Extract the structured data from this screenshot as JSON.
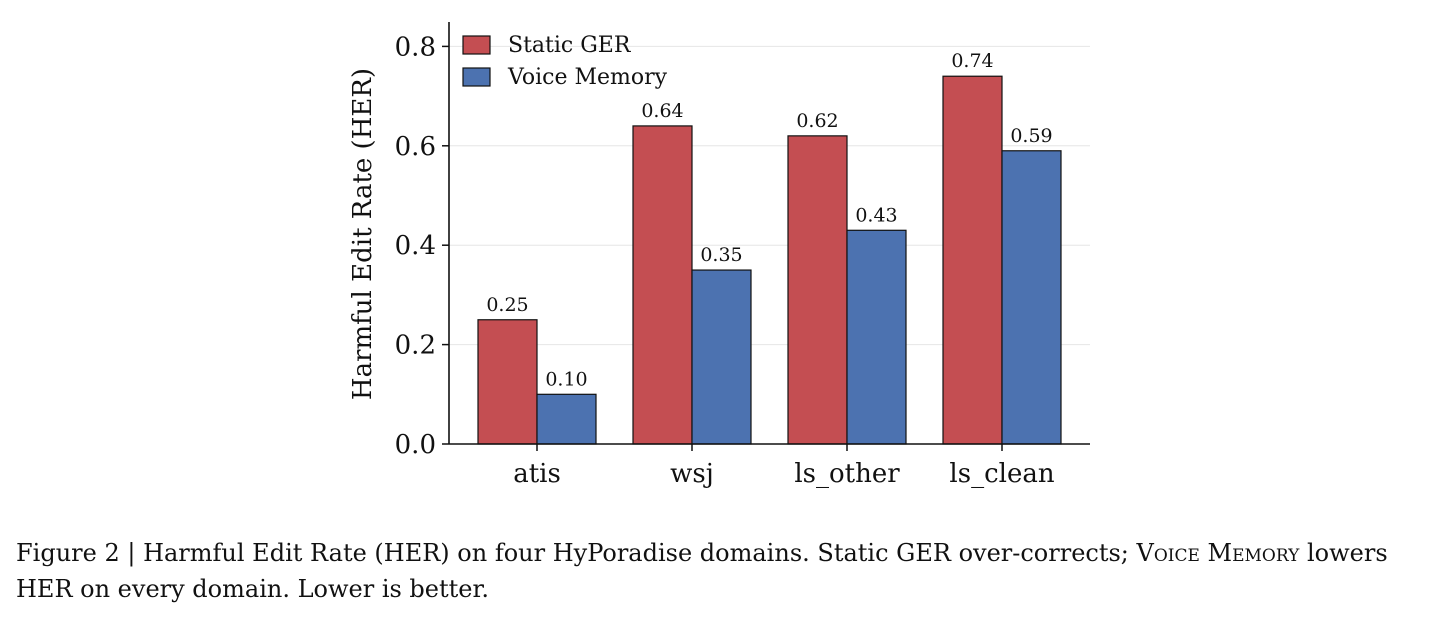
{
  "chart_data": {
    "type": "bar",
    "categories": [
      "atis",
      "wsj",
      "ls_other",
      "ls_clean"
    ],
    "series": [
      {
        "name": "Static GER",
        "color": "#c44e52",
        "values": [
          0.25,
          0.64,
          0.62,
          0.74
        ]
      },
      {
        "name": "Voice Memory",
        "color": "#4c72b0",
        "values": [
          0.1,
          0.35,
          0.43,
          0.59
        ]
      }
    ],
    "data_labels": [
      [
        "0.25",
        "0.64",
        "0.62",
        "0.74"
      ],
      [
        "0.10",
        "0.35",
        "0.43",
        "0.59"
      ]
    ],
    "xlabel": "",
    "ylabel": "Harmful Edit Rate (HER)",
    "ylim": [
      0,
      0.85
    ],
    "yticks": [
      0.0,
      0.2,
      0.4,
      0.6,
      0.8
    ],
    "ytick_labels": [
      "0.0",
      "0.2",
      "0.4",
      "0.6",
      "0.8"
    ],
    "grid": "horizontal",
    "legend_position": "top-left"
  },
  "caption": {
    "prefix": "Figure 2 | Harmful Edit Rate (HER) on four HyPoradise domains. Static GER over-corrects; ",
    "smallcaps": "Voice Memory",
    "suffix": " lowers HER on every domain. Lower is better."
  }
}
